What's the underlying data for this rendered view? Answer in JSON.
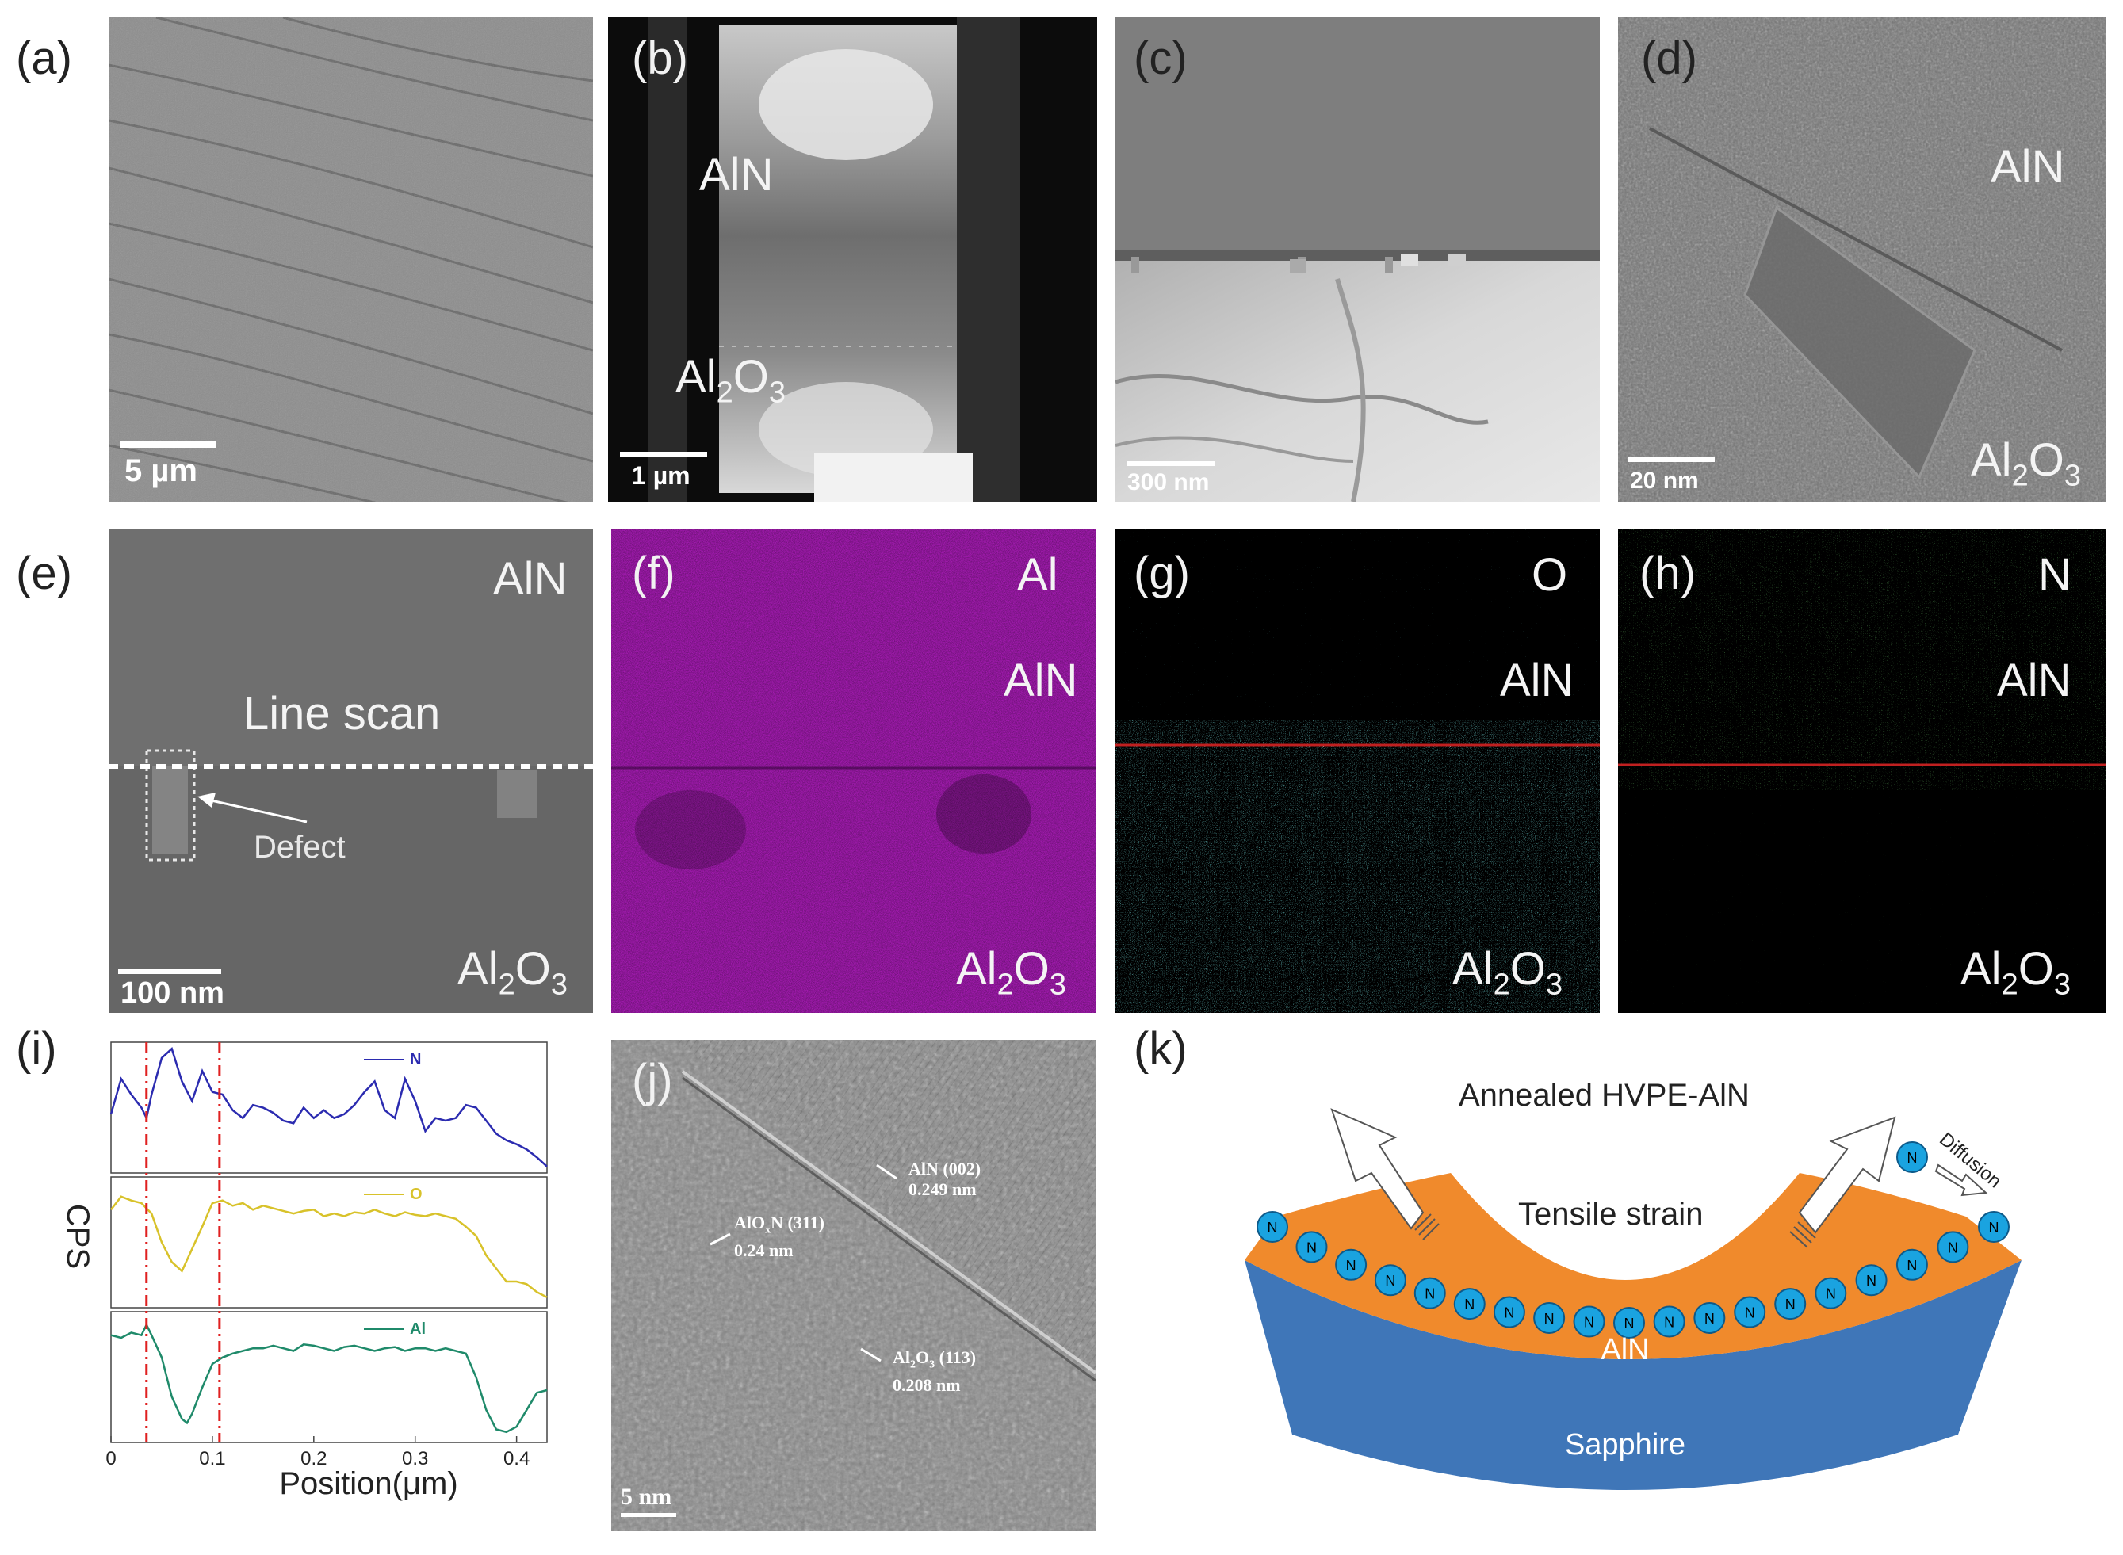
{
  "panels": {
    "a": {
      "label": "(a)",
      "scalebar": "5 µm"
    },
    "b": {
      "label": "(b)",
      "top_material": "AlN",
      "bottom_material_base": "Al",
      "bottom_material_sub": "2",
      "bottom_material_tail": "O",
      "bottom_material_sub2": "3",
      "scalebar": "1 µm"
    },
    "c": {
      "label": "(c)",
      "scalebar": "300 nm"
    },
    "d": {
      "label": "(d)",
      "top_material": "AlN",
      "scalebar": "20 nm"
    },
    "e": {
      "label": "(e)",
      "top_material": "AlN",
      "line_scan": "Line scan",
      "defect": "Defect",
      "scalebar": "100 nm"
    },
    "f": {
      "label": "(f)",
      "element": "Al",
      "top_material": "AlN"
    },
    "g": {
      "label": "(g)",
      "element": "O",
      "top_material": "AlN"
    },
    "h": {
      "label": "(h)",
      "element": "N",
      "top_material": "AlN"
    },
    "i": {
      "label": "(i)"
    },
    "j": {
      "label": "(j)",
      "ann1_a": "AlN (002)",
      "ann1_b": "0.249 nm",
      "ann2_a": "AlO",
      "ann2_x": "x",
      "ann2_n": "N (311)",
      "ann2_b": "0.24 nm",
      "ann3_a": "Al",
      "ann3_2": "2",
      "ann3_o": "O",
      "ann3_3": "3",
      "ann3_t": " (113)",
      "ann3_b": "0.208 nm",
      "scalebar": "5 nm"
    },
    "k": {
      "label": "(k)",
      "title": "Annealed HVPE-AlN",
      "strain": "Tensile strain",
      "diffusion": "Diffusion",
      "layer_top": "AlN",
      "layer_bottom": "Sapphire",
      "atom": "N"
    }
  },
  "sub_material": {
    "base": "Al",
    "sub1": "2",
    "mid": "O",
    "sub2": "3"
  },
  "chart_data": {
    "type": "line",
    "ylabel": "CPS",
    "xlabel": "Position(μm)",
    "xlim": [
      0,
      0.43
    ],
    "xticks": [
      "0",
      "0.1",
      "0.2",
      "0.3",
      "0.4"
    ],
    "markers": [
      0.035,
      0.107
    ],
    "series": [
      {
        "name": "N",
        "color": "#2b2bb0",
        "x": [
          0,
          0.01,
          0.02,
          0.03,
          0.035,
          0.04,
          0.05,
          0.06,
          0.07,
          0.08,
          0.09,
          0.1,
          0.11,
          0.12,
          0.13,
          0.14,
          0.15,
          0.16,
          0.17,
          0.18,
          0.19,
          0.2,
          0.21,
          0.22,
          0.23,
          0.24,
          0.25,
          0.26,
          0.27,
          0.28,
          0.29,
          0.3,
          0.31,
          0.32,
          0.33,
          0.34,
          0.35,
          0.36,
          0.37,
          0.38,
          0.39,
          0.4,
          0.41,
          0.42,
          0.43
        ],
        "values": [
          0.45,
          0.72,
          0.6,
          0.5,
          0.42,
          0.6,
          0.88,
          0.95,
          0.7,
          0.55,
          0.78,
          0.62,
          0.6,
          0.48,
          0.42,
          0.52,
          0.5,
          0.46,
          0.4,
          0.38,
          0.5,
          0.42,
          0.48,
          0.42,
          0.45,
          0.52,
          0.62,
          0.7,
          0.48,
          0.42,
          0.72,
          0.55,
          0.32,
          0.42,
          0.4,
          0.42,
          0.52,
          0.5,
          0.4,
          0.3,
          0.25,
          0.22,
          0.18,
          0.12,
          0.05
        ]
      },
      {
        "name": "O",
        "color": "#d8c22a",
        "x": [
          0,
          0.01,
          0.02,
          0.03,
          0.04,
          0.05,
          0.06,
          0.07,
          0.08,
          0.09,
          0.1,
          0.11,
          0.12,
          0.13,
          0.14,
          0.15,
          0.16,
          0.17,
          0.18,
          0.19,
          0.2,
          0.21,
          0.22,
          0.23,
          0.24,
          0.25,
          0.26,
          0.27,
          0.28,
          0.29,
          0.3,
          0.31,
          0.32,
          0.33,
          0.34,
          0.35,
          0.36,
          0.37,
          0.38,
          0.39,
          0.4,
          0.41,
          0.42,
          0.43
        ],
        "values": [
          0.75,
          0.85,
          0.82,
          0.8,
          0.72,
          0.5,
          0.35,
          0.28,
          0.45,
          0.62,
          0.8,
          0.82,
          0.78,
          0.8,
          0.75,
          0.78,
          0.76,
          0.74,
          0.72,
          0.74,
          0.75,
          0.7,
          0.72,
          0.7,
          0.73,
          0.72,
          0.75,
          0.72,
          0.7,
          0.73,
          0.71,
          0.7,
          0.72,
          0.7,
          0.68,
          0.62,
          0.55,
          0.4,
          0.3,
          0.2,
          0.2,
          0.18,
          0.12,
          0.08
        ]
      },
      {
        "name": "Al",
        "color": "#1f8a6a",
        "x": [
          0,
          0.01,
          0.02,
          0.03,
          0.035,
          0.04,
          0.05,
          0.06,
          0.07,
          0.075,
          0.08,
          0.09,
          0.1,
          0.11,
          0.12,
          0.13,
          0.14,
          0.15,
          0.16,
          0.17,
          0.18,
          0.19,
          0.2,
          0.21,
          0.22,
          0.23,
          0.24,
          0.25,
          0.26,
          0.27,
          0.28,
          0.29,
          0.3,
          0.31,
          0.32,
          0.33,
          0.34,
          0.35,
          0.36,
          0.37,
          0.38,
          0.39,
          0.4,
          0.41,
          0.42,
          0.43
        ],
        "values": [
          0.82,
          0.8,
          0.84,
          0.82,
          0.9,
          0.82,
          0.65,
          0.35,
          0.18,
          0.15,
          0.22,
          0.42,
          0.6,
          0.65,
          0.68,
          0.7,
          0.72,
          0.72,
          0.74,
          0.72,
          0.7,
          0.75,
          0.74,
          0.72,
          0.7,
          0.73,
          0.74,
          0.72,
          0.7,
          0.72,
          0.73,
          0.7,
          0.72,
          0.72,
          0.7,
          0.72,
          0.7,
          0.68,
          0.5,
          0.25,
          0.1,
          0.08,
          0.12,
          0.25,
          0.38,
          0.4
        ]
      }
    ]
  }
}
